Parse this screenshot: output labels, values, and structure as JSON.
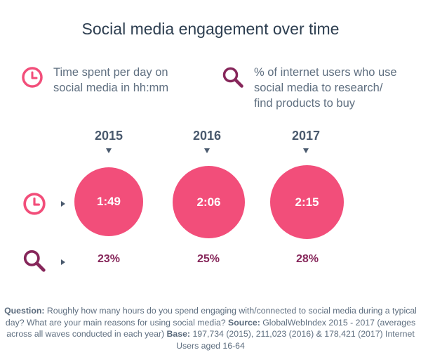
{
  "title": "Social media engagement over time",
  "legend": {
    "time_line1": "Time spent per day on",
    "time_line2": "social media in hh:mm",
    "search_line1": "% of internet users who use",
    "search_line2": "social media to research/",
    "search_line3": "find products to buy"
  },
  "colors": {
    "circle": "#f24e7a",
    "clock_icon": "#f24e7a",
    "search_icon": "#86265a",
    "percent": "#86265a",
    "text": "#5f6f80"
  },
  "chart_data": {
    "type": "table",
    "categories": [
      "2015",
      "2016",
      "2017"
    ],
    "series": [
      {
        "name": "Time spent per day on social media in hh:mm",
        "values": [
          "1:49",
          "2:06",
          "2:15"
        ]
      },
      {
        "name": "% of internet users who use social media to research/find products to buy",
        "values": [
          "23%",
          "25%",
          "28%"
        ]
      }
    ]
  },
  "footnote": {
    "question_label": "Question:",
    "question_text": " Roughly how many hours do you spend engaging with/connected to social media during a typical day? What are your main reasons for using social media?",
    "source_label": " Source:",
    "source_text": " GlobalWebIndex 2015 - 2017 (averages across all waves conducted in each year)",
    "base_label": " Base:",
    "base_text": " 197,734 (2015), 211,023 (2016) & 178,421 (2017) Internet Users aged 16-64"
  }
}
